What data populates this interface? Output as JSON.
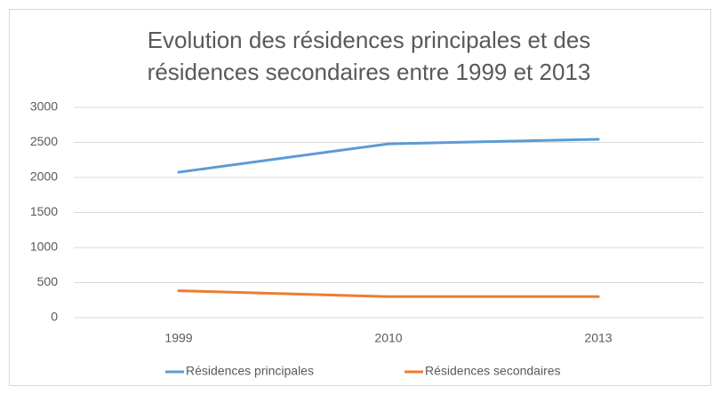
{
  "chart_data": {
    "type": "line",
    "title": [
      "Evolution des résidences principales et des",
      "résidences secondaires entre 1999 et 2013"
    ],
    "categories": [
      "1999",
      "2010",
      "2013"
    ],
    "series": [
      {
        "name": "Résidences principales",
        "color": "#5b9bd5",
        "values": [
          2075,
          2480,
          2545
        ]
      },
      {
        "name": "Résidences secondaires",
        "color": "#ed7d31",
        "values": [
          385,
          300,
          300
        ]
      }
    ],
    "ylim": [
      0,
      3000
    ],
    "yticks": [
      0,
      500,
      1000,
      1500,
      2000,
      2500,
      3000
    ],
    "grid": true,
    "legend": "bottom"
  }
}
